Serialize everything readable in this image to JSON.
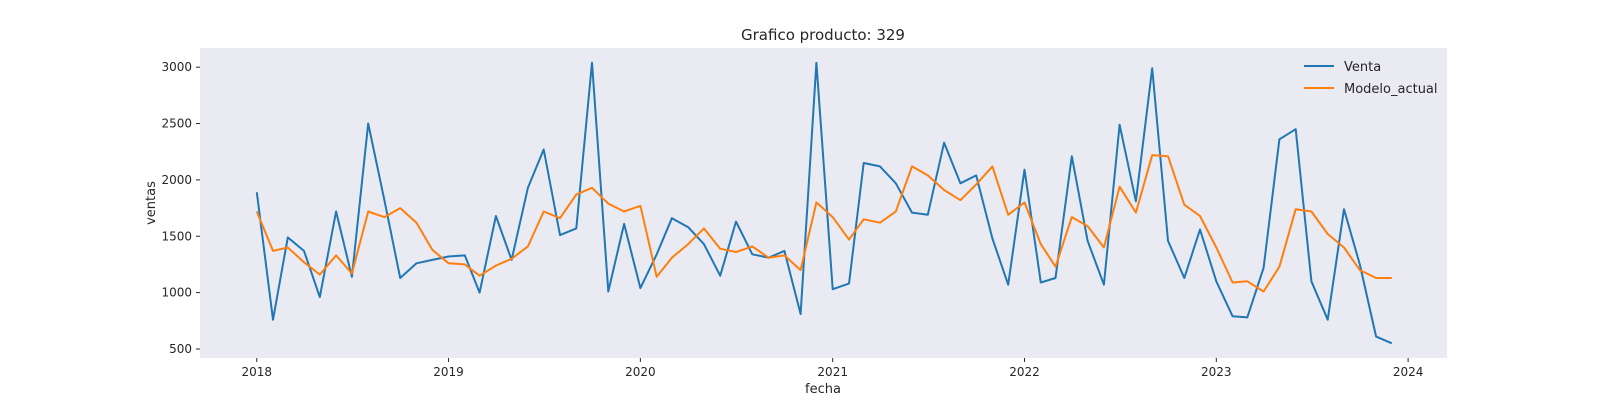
{
  "chart_data": {
    "type": "line",
    "title": "Grafico producto: 329",
    "xlabel": "fecha",
    "ylabel": "ventas",
    "x_tick_labels": [
      "2018",
      "2019",
      "2020",
      "2021",
      "2022",
      "2023",
      "2024"
    ],
    "y_ticks": [
      500,
      1000,
      1500,
      2000,
      2500,
      3000
    ],
    "xlim": [
      "2017-09-15",
      "2024-03-15"
    ],
    "ylim": [
      420,
      3170
    ],
    "grid": false,
    "legend_position": "top-right",
    "colors": {
      "plot_bg": "#eaeaf2",
      "Venta": "#1f77b4",
      "Modelo_actual": "#ff7f0e"
    },
    "x": [
      "2018-01",
      "2018-02",
      "2018-03",
      "2018-04",
      "2018-05",
      "2018-06",
      "2018-07",
      "2018-08",
      "2018-09",
      "2018-10",
      "2018-11",
      "2018-12",
      "2019-01",
      "2019-02",
      "2019-03",
      "2019-04",
      "2019-05",
      "2019-06",
      "2019-07",
      "2019-08",
      "2019-09",
      "2019-10",
      "2019-11",
      "2019-12",
      "2020-01",
      "2020-02",
      "2020-03",
      "2020-04",
      "2020-05",
      "2020-06",
      "2020-07",
      "2020-08",
      "2020-09",
      "2020-10",
      "2020-11",
      "2020-12",
      "2021-01",
      "2021-02",
      "2021-03",
      "2021-04",
      "2021-05",
      "2021-06",
      "2021-07",
      "2021-08",
      "2021-09",
      "2021-10",
      "2021-11",
      "2021-12",
      "2022-01",
      "2022-02",
      "2022-03",
      "2022-04",
      "2022-05",
      "2022-06",
      "2022-07",
      "2022-08",
      "2022-09",
      "2022-10",
      "2022-11",
      "2022-12",
      "2023-01",
      "2023-02",
      "2023-03",
      "2023-04",
      "2023-05",
      "2023-06",
      "2023-07",
      "2023-08",
      "2023-09",
      "2023-10",
      "2023-11",
      "2023-12"
    ],
    "series": [
      {
        "name": "Venta",
        "values": [
          1890,
          760,
          1490,
          1370,
          960,
          1720,
          1140,
          2500,
          1820,
          1130,
          1260,
          1290,
          1320,
          1330,
          1000,
          1680,
          1290,
          1930,
          2270,
          1510,
          1570,
          3040,
          1010,
          1610,
          1040,
          1340,
          1660,
          1580,
          1430,
          1150,
          1630,
          1340,
          1310,
          1370,
          810,
          3040,
          1030,
          1080,
          2150,
          2120,
          1970,
          1710,
          1690,
          2330,
          1970,
          2040,
          1480,
          1070,
          2090,
          1090,
          1130,
          2210,
          1460,
          1070,
          2490,
          1810,
          2990,
          1460,
          1130,
          1560,
          1100,
          790,
          780,
          1220,
          2360,
          2450,
          1100,
          760,
          1740,
          1250,
          610,
          550
        ]
      },
      {
        "name": "Modelo_actual",
        "values": [
          1720,
          1370,
          1400,
          1270,
          1160,
          1330,
          1170,
          1720,
          1670,
          1750,
          1620,
          1380,
          1260,
          1250,
          1150,
          1240,
          1300,
          1410,
          1720,
          1660,
          1870,
          1930,
          1790,
          1720,
          1770,
          1140,
          1310,
          1430,
          1570,
          1390,
          1360,
          1410,
          1310,
          1330,
          1200,
          1800,
          1670,
          1470,
          1650,
          1620,
          1720,
          2120,
          2040,
          1910,
          1820,
          1960,
          2120,
          1690,
          1800,
          1430,
          1230,
          1670,
          1590,
          1400,
          1940,
          1710,
          2220,
          2210,
          1780,
          1680,
          1400,
          1090,
          1100,
          1010,
          1230,
          1740,
          1720,
          1520,
          1400,
          1200,
          1130,
          1130
        ]
      }
    ]
  }
}
